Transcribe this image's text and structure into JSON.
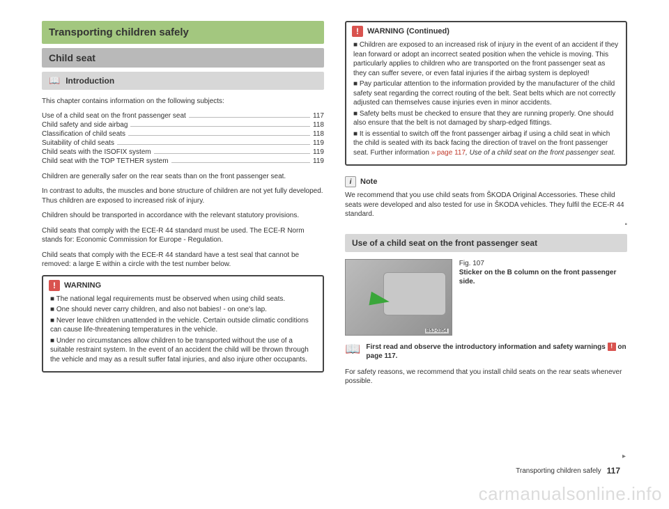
{
  "left": {
    "title_green": "Transporting children safely",
    "title_gray": "Child seat",
    "subhead": "Introduction",
    "lead": "This chapter contains information on the following subjects:",
    "toc": [
      {
        "label": "Use of a child seat on the front passenger seat",
        "page": "117"
      },
      {
        "label": "Child safety and side airbag",
        "page": "118"
      },
      {
        "label": "Classification of child seats",
        "page": "118"
      },
      {
        "label": "Suitability of child seats",
        "page": "119"
      },
      {
        "label": "Child seats with the ISOFIX system",
        "page": "119"
      },
      {
        "label": "Child seat with the TOP TETHER system",
        "page": "119"
      }
    ],
    "paras": [
      "Children are generally safer on the rear seats than on the front passenger seat.",
      "In contrast to adults, the muscles and bone structure of children are not yet fully developed. Thus children are exposed to increased risk of injury.",
      "Children should be transported in accordance with the relevant statutory provisions.",
      "Child seats that comply with the ECE-R 44 standard must be used. The ECE-R Norm stands for: Economic Commission for Europe - Regulation.",
      "Child seats that comply with the ECE-R 44 standard have a test seal that cannot be removed: a large E within a circle with the test number below."
    ],
    "warning_title": "WARNING",
    "warning_items": [
      "The national legal requirements must be observed when using child seats.",
      "One should never carry children, and also not babies! - on one's lap.",
      "Never leave children unattended in the vehicle. Certain outside climatic conditions can cause life-threatening temperatures in the vehicle.",
      "Under no circumstances allow children to be transported without the use of a suitable restraint system. In the event of an accident the child will be thrown through the vehicle and may as a result suffer fatal injuries, and also injure other occupants."
    ]
  },
  "right": {
    "warning_cont_title": "WARNING (Continued)",
    "warning_cont_items": [
      "Children are exposed to an increased risk of injury in the event of an accident if they lean forward or adopt an incorrect seated position when the vehicle is moving. This particularly applies to children who are transported on the front passenger seat as they can suffer severe, or even fatal injuries if the airbag system is deployed!",
      "Pay particular attention to the information provided by the manufacturer of the child safety seat regarding the correct routing of the belt. Seat belts which are not correctly adjusted can themselves cause injuries even in minor accidents.",
      "Safety belts must be checked to ensure that they are running properly. One should also ensure that the belt is not damaged by sharp-edged fittings.",
      "It is essential to switch off the front passenger airbag if using a child seat in which the child is seated with its back facing the direction of travel on the front passenger seat. Further information "
    ],
    "warning_link": "» page 117",
    "warning_link_tail": ", Use of a child seat on the front passenger seat.",
    "note_title": "Note",
    "note_body": "We recommend that you use child seats from ŠKODA Original Accessories. These child seats were developed and also tested for use in ŠKODA vehicles. They fulfil the ECE-R 44 standard.",
    "section_head": "Use of a child seat on the front passenger seat",
    "fig_label": "Fig. 107",
    "fig_caption": "Sticker on the B column on the front passenger side.",
    "fig_tag": "B5J-0354",
    "read_first_1": "First read and observe the introductory information and safety warnings ",
    "read_first_2": " on page 117.",
    "tail": "For safety reasons, we recommend that you install child seats on the rear seats whenever possible."
  },
  "footer": {
    "section": "Transporting children safely",
    "page": "117"
  },
  "watermark": "carmanualsonline.info"
}
